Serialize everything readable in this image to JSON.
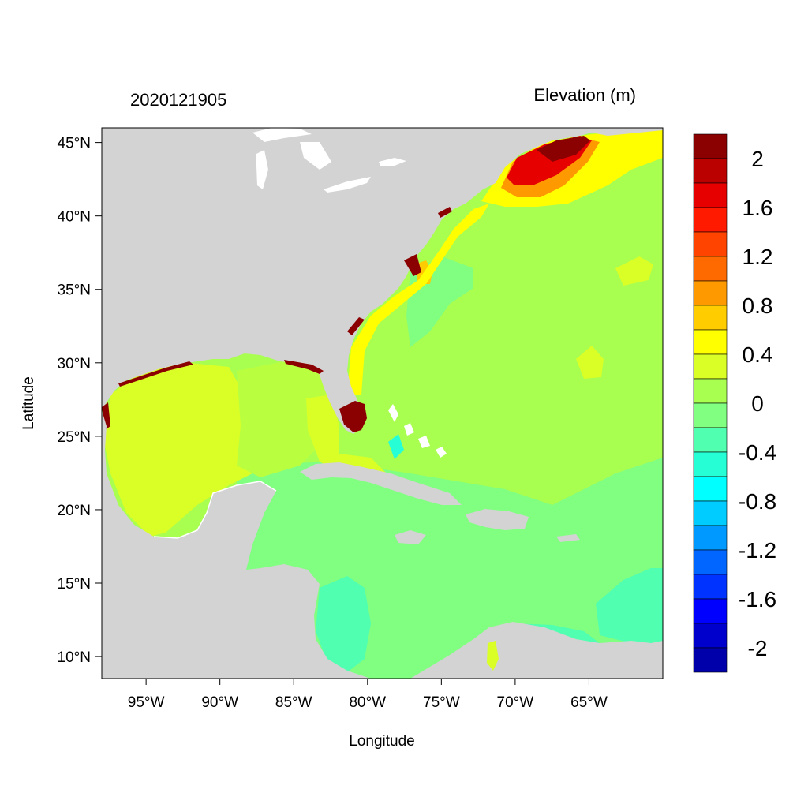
{
  "map": {
    "timestamp": "2020121905",
    "title": "Elevation (m)",
    "xlabel": "Longitude",
    "ylabel": "Latitude",
    "lon_range": [
      -98,
      -60
    ],
    "lat_range": [
      8.5,
      46
    ],
    "lon_ticks": [
      {
        "value": -95,
        "label": "95°W"
      },
      {
        "value": -90,
        "label": "90°W"
      },
      {
        "value": -85,
        "label": "85°W"
      },
      {
        "value": -80,
        "label": "80°W"
      },
      {
        "value": -75,
        "label": "75°W"
      },
      {
        "value": -70,
        "label": "70°W"
      },
      {
        "value": -65,
        "label": "65°W"
      }
    ],
    "lat_ticks": [
      {
        "value": 45,
        "label": "45°N"
      },
      {
        "value": 40,
        "label": "40°N"
      },
      {
        "value": 35,
        "label": "35°N"
      },
      {
        "value": 30,
        "label": "30°N"
      },
      {
        "value": 25,
        "label": "25°N"
      },
      {
        "value": 20,
        "label": "20°N"
      },
      {
        "value": 15,
        "label": "15°N"
      },
      {
        "value": 10,
        "label": "10°N"
      }
    ],
    "land_color": "#d3d3d3",
    "lake_color": "#ffffff"
  },
  "colorbar": {
    "levels_top_to_bottom": [
      "#8b0000",
      "#bb0000",
      "#e60000",
      "#ff1a00",
      "#ff4400",
      "#ff6a00",
      "#ff9900",
      "#ffcc00",
      "#ffff00",
      "#d9ff26",
      "#a8ff50",
      "#80ff80",
      "#50ffb0",
      "#26ffd6",
      "#00ffff",
      "#00ccff",
      "#0099ff",
      "#0066ff",
      "#0033ff",
      "#0000ff",
      "#0000cc",
      "#0000aa"
    ],
    "labels": [
      {
        "text": "2",
        "value": 2.0
      },
      {
        "text": "1.6",
        "value": 1.6
      },
      {
        "text": "1.2",
        "value": 1.2
      },
      {
        "text": "0.8",
        "value": 0.8
      },
      {
        "text": "0.4",
        "value": 0.4
      },
      {
        "text": "0",
        "value": 0.0
      },
      {
        "text": "-0.4",
        "value": -0.4
      },
      {
        "text": "-0.8",
        "value": -0.8
      },
      {
        "text": "-1.2",
        "value": -1.2
      },
      {
        "text": "-1.6",
        "value": -1.6
      },
      {
        "text": "-2",
        "value": -2.0
      }
    ]
  }
}
